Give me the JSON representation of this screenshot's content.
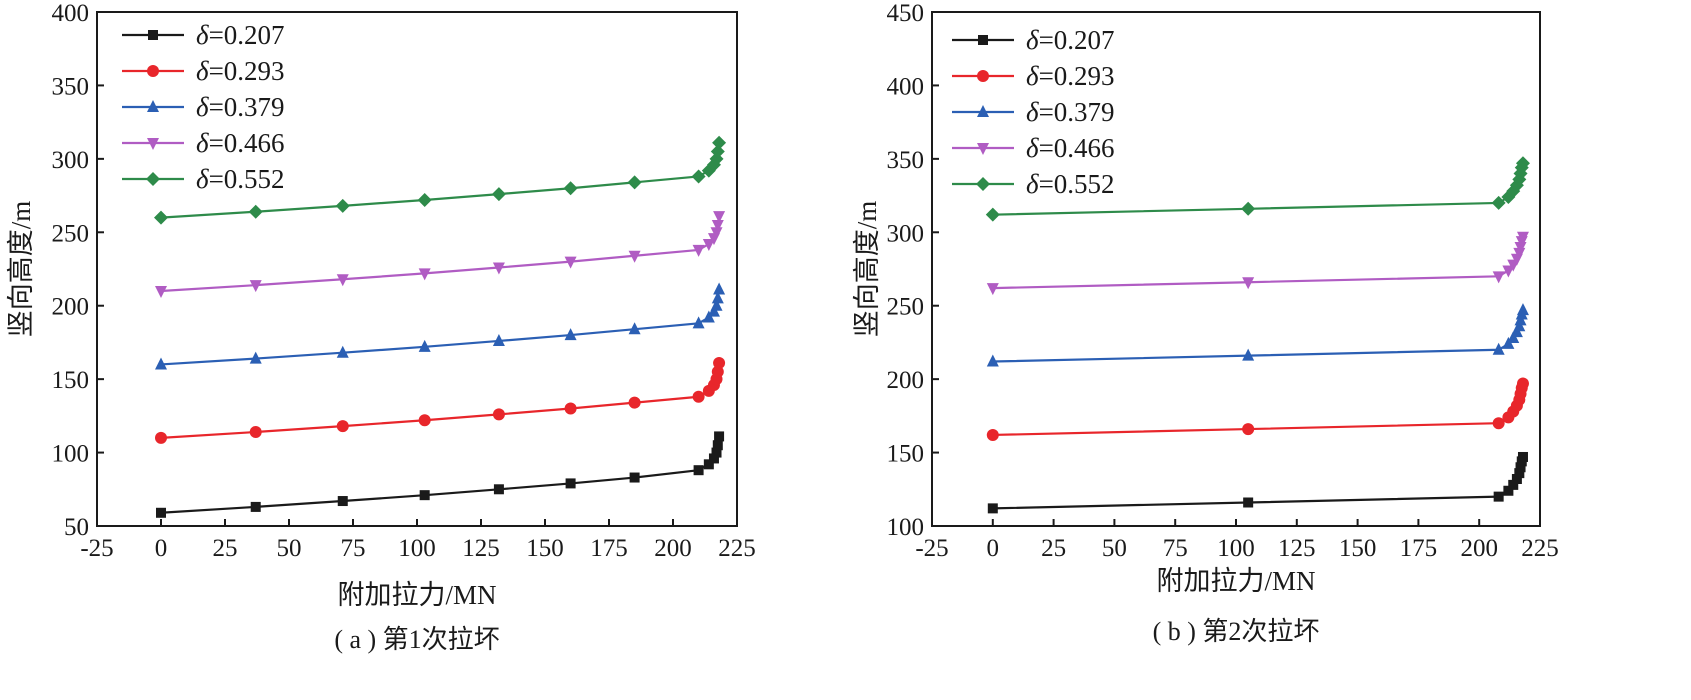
{
  "chart_data": [
    {
      "type": "line",
      "caption": "( a ) 第1次拉坏",
      "xlabel": "附加拉力/MN",
      "ylabel": "竖向高度/m",
      "xlim": [
        -25,
        225
      ],
      "ylim": [
        50,
        400
      ],
      "xticks": [
        -25,
        0,
        25,
        50,
        75,
        100,
        125,
        150,
        175,
        200,
        225
      ],
      "yticks": [
        50,
        100,
        150,
        200,
        250,
        300,
        350,
        400
      ],
      "grid": false,
      "legend_position": "top-left",
      "series": [
        {
          "name": "δ=0.207",
          "symbol": "δ",
          "value_label": "=0.207",
          "color": "#1a1a1a",
          "marker": "square",
          "x": [
            0,
            37,
            71,
            103,
            132,
            160,
            185,
            210,
            214,
            216,
            217,
            217.5,
            218
          ],
          "y": [
            59,
            63,
            67,
            71,
            75,
            79,
            83,
            88,
            92,
            96,
            100,
            105,
            111
          ]
        },
        {
          "name": "δ=0.293",
          "symbol": "δ",
          "value_label": "=0.293",
          "color": "#e8262b",
          "marker": "circle",
          "x": [
            0,
            37,
            71,
            103,
            132,
            160,
            185,
            210,
            214,
            216,
            217,
            217.5,
            218
          ],
          "y": [
            110,
            114,
            118,
            122,
            126,
            130,
            134,
            138,
            142,
            146,
            150,
            155,
            161
          ]
        },
        {
          "name": "δ=0.379",
          "symbol": "δ",
          "value_label": "=0.379",
          "color": "#2b5fb4",
          "marker": "triangle-up",
          "x": [
            0,
            37,
            71,
            103,
            132,
            160,
            185,
            210,
            214,
            216,
            217,
            217.5,
            218
          ],
          "y": [
            160,
            164,
            168,
            172,
            176,
            180,
            184,
            188,
            192,
            196,
            200,
            205,
            211
          ]
        },
        {
          "name": "δ=0.466",
          "symbol": "δ",
          "value_label": "=0.466",
          "color": "#b05cc3",
          "marker": "triangle-down",
          "x": [
            0,
            37,
            71,
            103,
            132,
            160,
            185,
            210,
            214,
            216,
            217,
            217.5,
            218
          ],
          "y": [
            210,
            214,
            218,
            222,
            226,
            230,
            234,
            238,
            242,
            246,
            250,
            255,
            261
          ]
        },
        {
          "name": "δ=0.552",
          "symbol": "δ",
          "value_label": "=0.552",
          "color": "#2e8b4a",
          "marker": "diamond",
          "x": [
            0,
            37,
            71,
            103,
            132,
            160,
            185,
            210,
            214,
            216,
            217,
            217.5,
            218
          ],
          "y": [
            260,
            264,
            268,
            272,
            276,
            280,
            284,
            288,
            292,
            296,
            300,
            305,
            311
          ]
        }
      ]
    },
    {
      "type": "line",
      "caption": "( b ) 第2次拉坏",
      "xlabel": "附加拉力/MN",
      "ylabel": "竖向高度/m",
      "xlim": [
        -25,
        225
      ],
      "ylim": [
        100,
        450
      ],
      "xticks": [
        -25,
        0,
        25,
        50,
        75,
        100,
        125,
        150,
        175,
        200,
        225
      ],
      "yticks": [
        100,
        150,
        200,
        250,
        300,
        350,
        400,
        450
      ],
      "grid": false,
      "legend_position": "top-left",
      "series": [
        {
          "name": "δ=0.207",
          "symbol": "δ",
          "value_label": "=0.207",
          "color": "#1a1a1a",
          "marker": "square",
          "x": [
            0,
            105,
            208,
            212,
            214,
            215.5,
            216.5,
            217,
            217.5,
            218
          ],
          "y": [
            112,
            116,
            120,
            124,
            128,
            132,
            136,
            140,
            144,
            147
          ]
        },
        {
          "name": "δ=0.293",
          "symbol": "δ",
          "value_label": "=0.293",
          "color": "#e8262b",
          "marker": "circle",
          "x": [
            0,
            105,
            208,
            212,
            214,
            215.5,
            216.5,
            217,
            217.5,
            218
          ],
          "y": [
            162,
            166,
            170,
            174,
            178,
            182,
            186,
            190,
            194,
            197
          ]
        },
        {
          "name": "δ=0.379",
          "symbol": "δ",
          "value_label": "=0.379",
          "color": "#2b5fb4",
          "marker": "triangle-up",
          "x": [
            0,
            105,
            208,
            212,
            214,
            215.5,
            216.5,
            217,
            217.5,
            218
          ],
          "y": [
            212,
            216,
            220,
            224,
            228,
            232,
            236,
            240,
            244,
            247
          ]
        },
        {
          "name": "δ=0.466",
          "symbol": "δ",
          "value_label": "=0.466",
          "color": "#b05cc3",
          "marker": "triangle-down",
          "x": [
            0,
            105,
            208,
            212,
            214,
            215.5,
            216.5,
            217,
            217.5,
            218
          ],
          "y": [
            262,
            266,
            270,
            274,
            278,
            282,
            286,
            290,
            294,
            297
          ]
        },
        {
          "name": "δ=0.552",
          "symbol": "δ",
          "value_label": "=0.552",
          "color": "#2e8b4a",
          "marker": "diamond",
          "x": [
            0,
            105,
            208,
            212,
            214,
            215.5,
            216.5,
            217,
            217.5,
            218
          ],
          "y": [
            312,
            316,
            320,
            324,
            328,
            332,
            336,
            340,
            344,
            347
          ]
        }
      ]
    }
  ]
}
